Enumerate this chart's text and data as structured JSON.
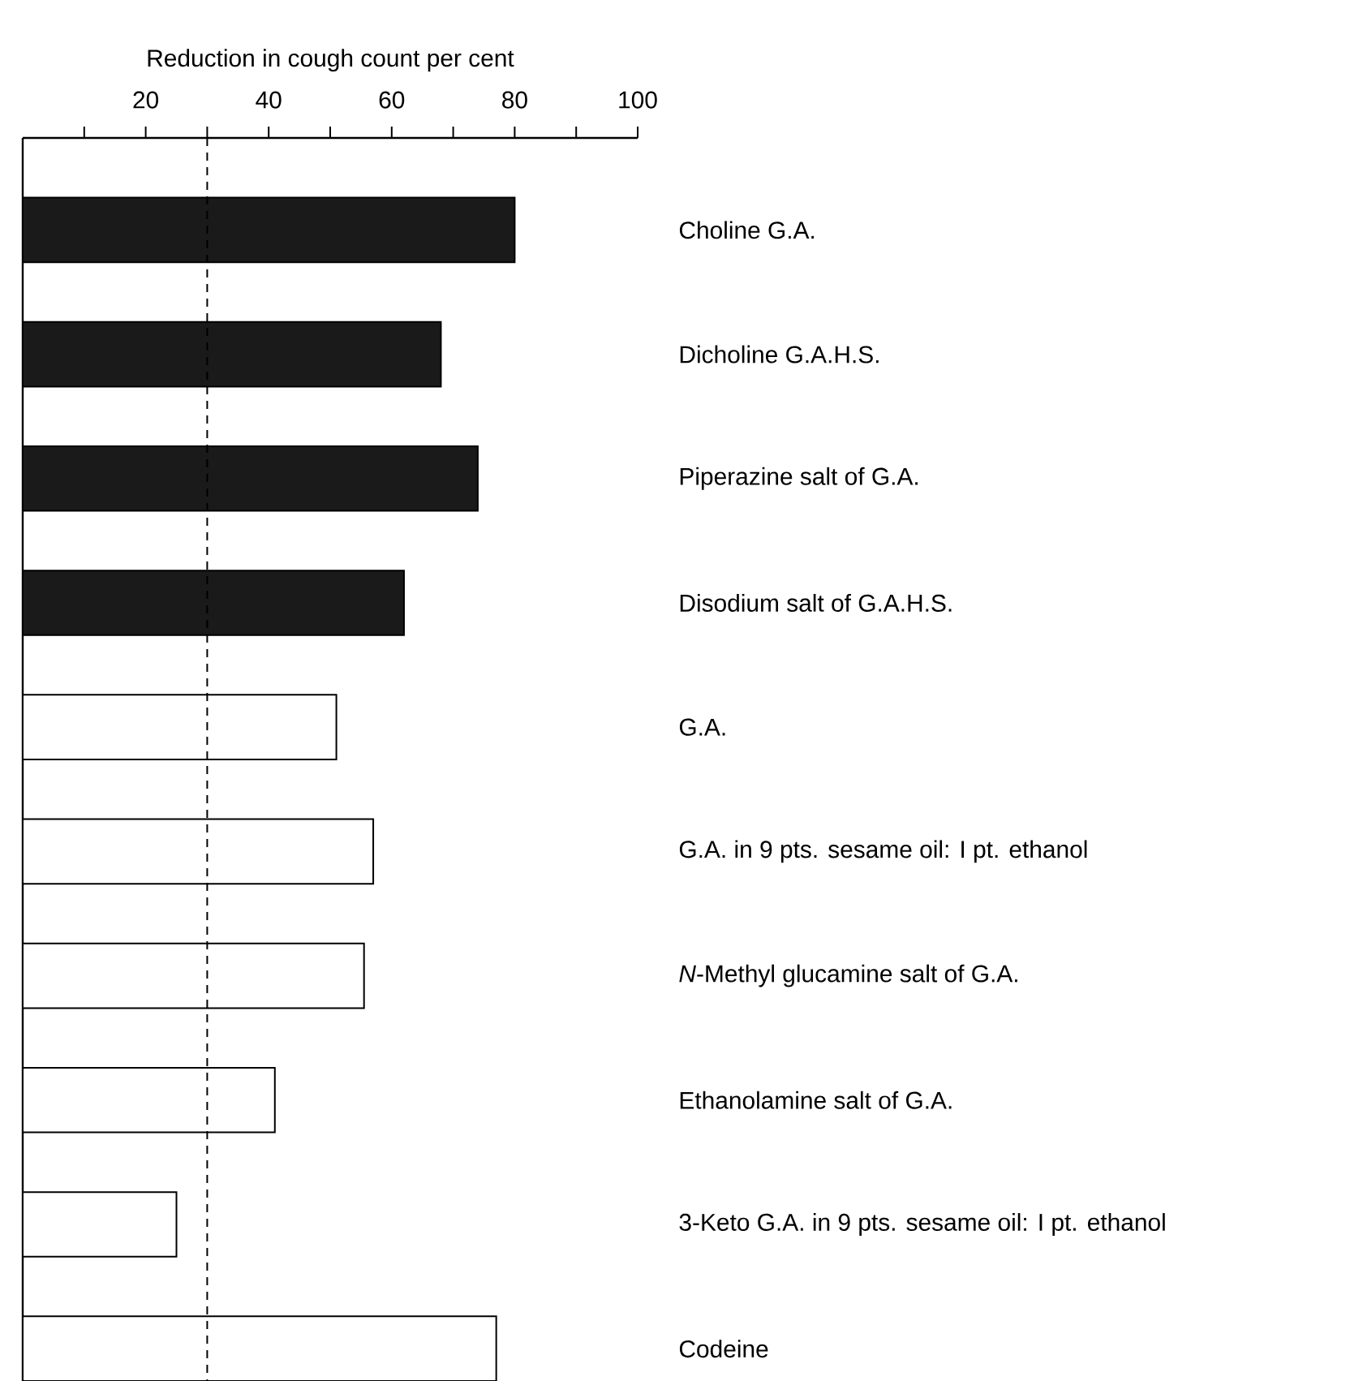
{
  "chart_data": {
    "type": "bar",
    "orientation": "horizontal",
    "xlabel": "Reduction in cough count per cent",
    "categories": [
      "Choline G.A.",
      "Dicholine G.A.H.S.",
      "Piperazine salt of G.A.",
      "Disodium salt of G.A.H.S.",
      "G.A.",
      "G.A. in 9 pts. sesame oil: I pt. ethanol",
      "*N*-Methyl glucamine salt of G.A.",
      "Ethanolamine salt of G.A.",
      "3-Keto G.A. in 9 pts. sesame oil: I pt. ethanol",
      "Codeine"
    ],
    "values": [
      80,
      68,
      74,
      62,
      51,
      57,
      55.5,
      41,
      25,
      77
    ],
    "colors": [
      "#1a1a1a",
      "#1a1a1a",
      "#1a1a1a",
      "#1a1a1a",
      "#ffffff",
      "#ffffff",
      "#ffffff",
      "#ffffff",
      "#ffffff",
      "#ffffff"
    ],
    "xlim": [
      0,
      100
    ],
    "xticks": [
      {
        "value": 10,
        "label": null
      },
      20,
      {
        "value": 30,
        "label": null
      },
      40,
      {
        "value": 50,
        "label": null
      },
      60,
      {
        "value": 70,
        "label": null
      },
      80,
      {
        "value": 90,
        "label": null
      },
      100
    ],
    "ref_lines": [
      {
        "axis": "x",
        "value": 30,
        "line_style": "dashed"
      }
    ]
  }
}
